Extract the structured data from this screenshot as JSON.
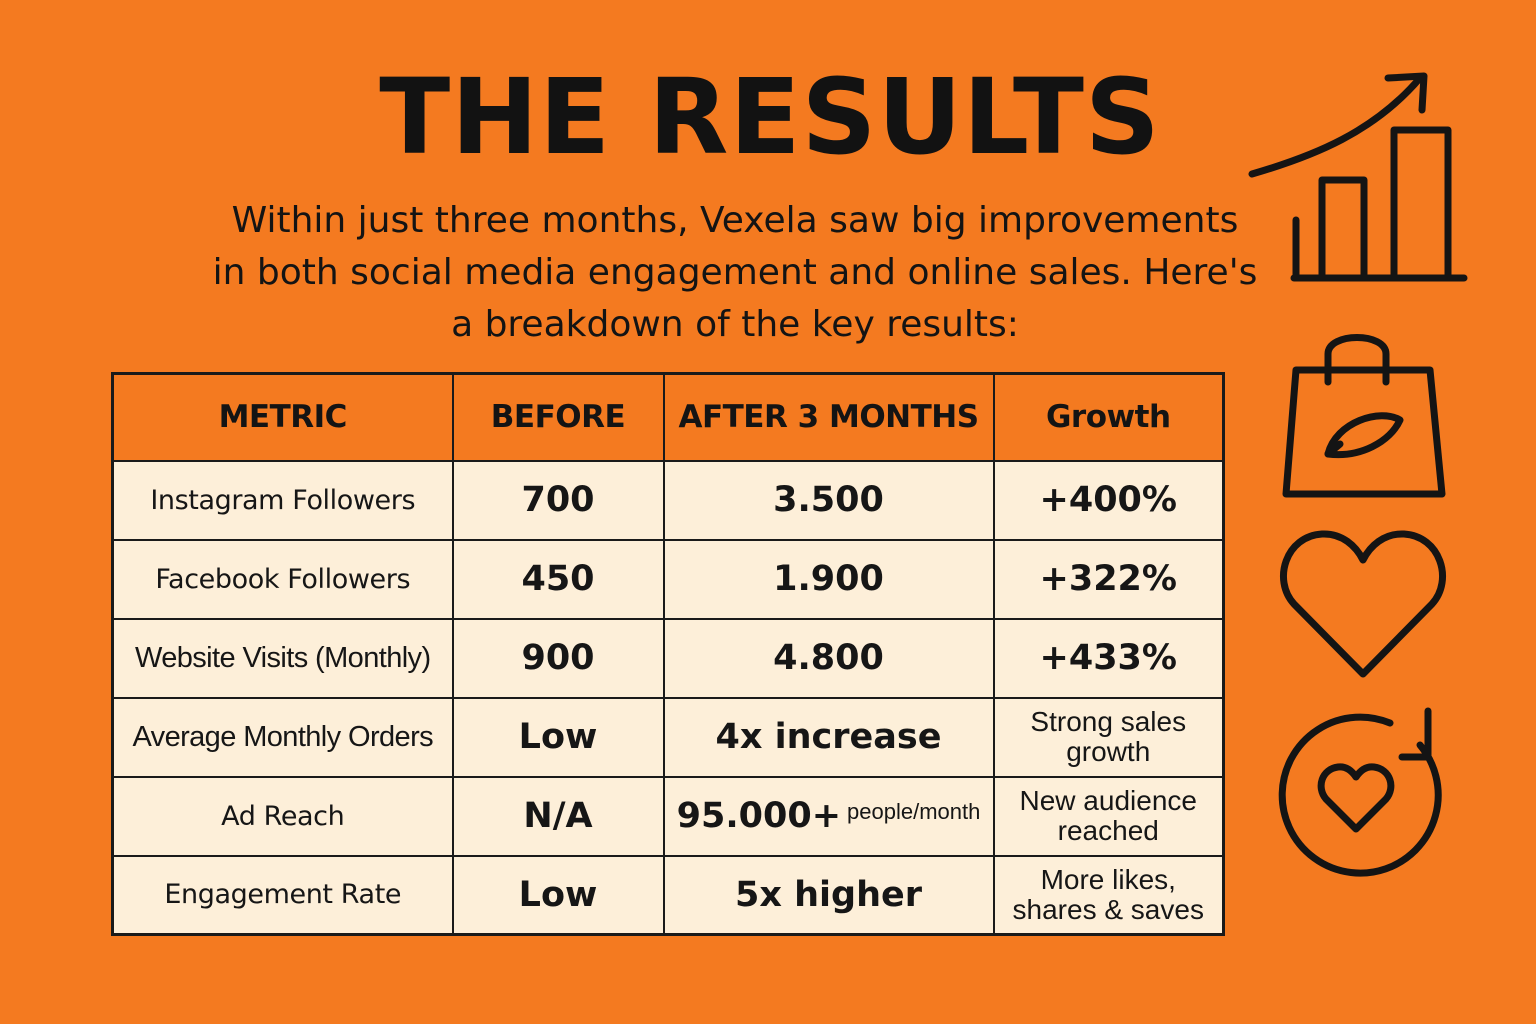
{
  "title": "THE RESULTS",
  "intro": "Within just three months, Vexela saw big improvements\nin both social media engagement and online sales. Here's\na breakdown of the key results:",
  "table": {
    "headers": [
      "METRIC",
      "BEFORE",
      "AFTER 3 MONTHS",
      "Growth"
    ],
    "rows": [
      {
        "metric": "Instagram Followers",
        "before": "700",
        "after": "3.500",
        "after_suffix": "",
        "growth": "+400%"
      },
      {
        "metric": "Facebook Followers",
        "before": "450",
        "after": "1.900",
        "after_suffix": "",
        "growth": "+322%"
      },
      {
        "metric": "Website Visits (Monthly)",
        "before": "900",
        "after": "4.800",
        "after_suffix": "",
        "growth": "+433%"
      },
      {
        "metric": "Average Monthly Orders",
        "before": "Low",
        "after": "4x increase",
        "after_suffix": "",
        "growth": "Strong sales\ngrowth"
      },
      {
        "metric": "Ad Reach",
        "before": "N/A",
        "after": "95.000+",
        "after_suffix": "people/month",
        "growth": "New audience\nreached"
      },
      {
        "metric": "Engagement Rate",
        "before": "Low",
        "after": "5x higher",
        "after_suffix": "",
        "growth": "More likes,\nshares & saves"
      }
    ]
  },
  "icons": [
    "growth-chart-icon",
    "shopping-bag-icon",
    "heart-icon",
    "heart-refresh-icon"
  ],
  "colors": {
    "background": "#f47a20",
    "header_cell": "#f47a20",
    "body_cell": "#fdefd9",
    "ink": "#111111"
  }
}
